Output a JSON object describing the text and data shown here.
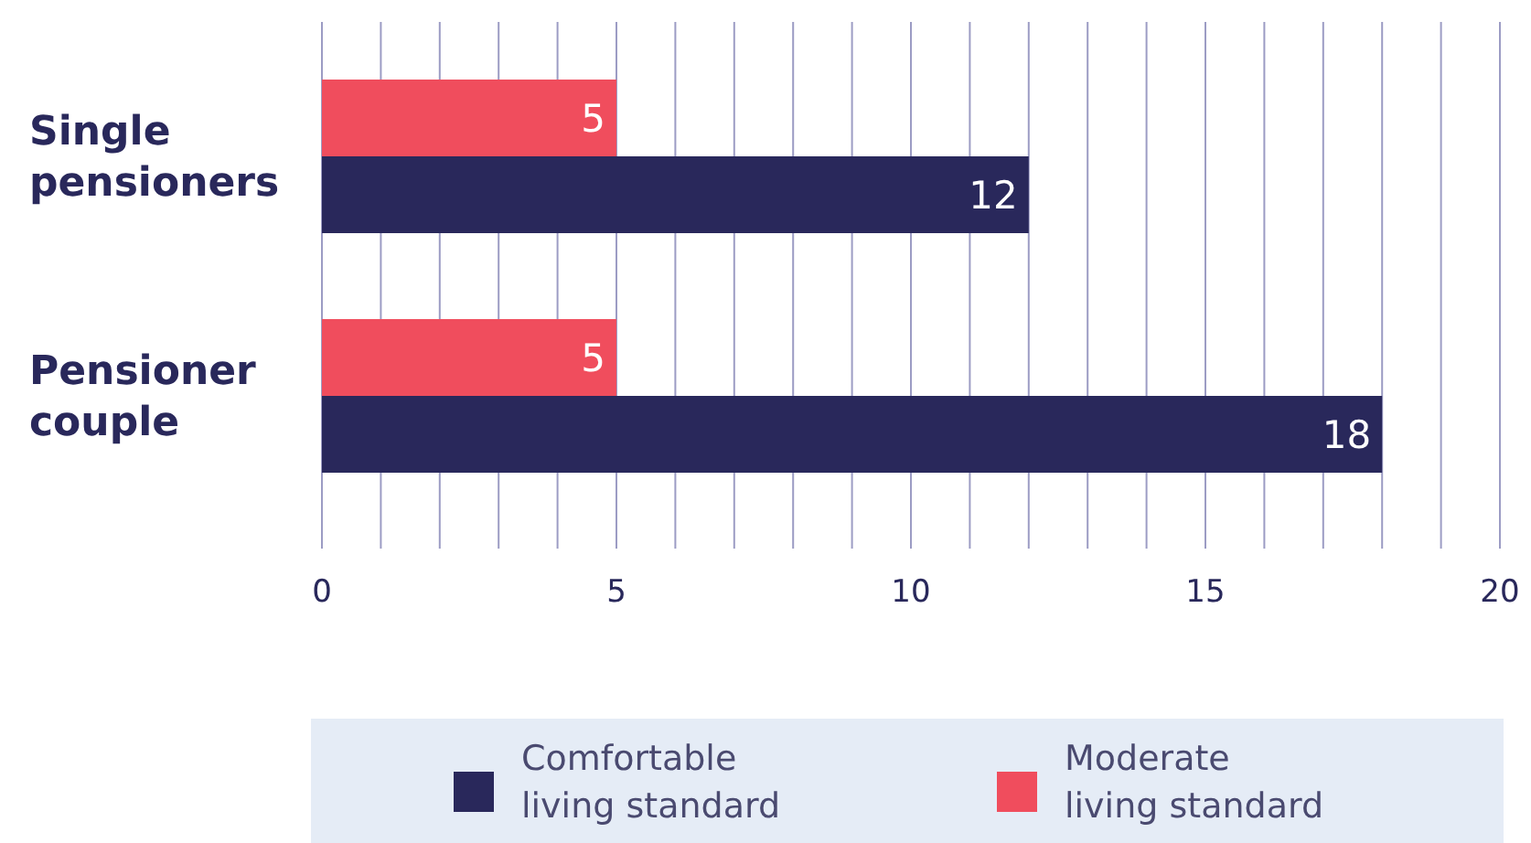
{
  "chart_data": {
    "type": "bar",
    "orientation": "horizontal",
    "categories": [
      "Single pensioners",
      "Pensioner couple"
    ],
    "series": [
      {
        "name": "Comfortable living standard",
        "color": "#29285b",
        "values": [
          12,
          18
        ]
      },
      {
        "name": "Moderate living standard",
        "color": "#f04d5d",
        "values": [
          5,
          5
        ]
      }
    ],
    "xlim": [
      0,
      20
    ],
    "xticks": [
      0,
      {
        "value": 1,
        "label": null
      },
      {
        "value": 2,
        "label": null
      },
      {
        "value": 3,
        "label": null
      },
      {
        "value": 4,
        "label": null
      },
      5,
      {
        "value": 6,
        "label": null
      },
      {
        "value": 7,
        "label": null
      },
      {
        "value": 8,
        "label": null
      },
      {
        "value": 9,
        "label": null
      },
      10,
      {
        "value": 11,
        "label": null
      },
      {
        "value": 12,
        "label": null
      },
      {
        "value": 13,
        "label": null
      },
      {
        "value": 14,
        "label": null
      },
      15,
      {
        "value": 16,
        "label": null
      },
      {
        "value": 17,
        "label": null
      },
      {
        "value": 18,
        "label": null
      },
      {
        "value": 19,
        "label": null
      },
      20
    ],
    "grid": "x",
    "data_labels": true,
    "legend": "bottom"
  }
}
